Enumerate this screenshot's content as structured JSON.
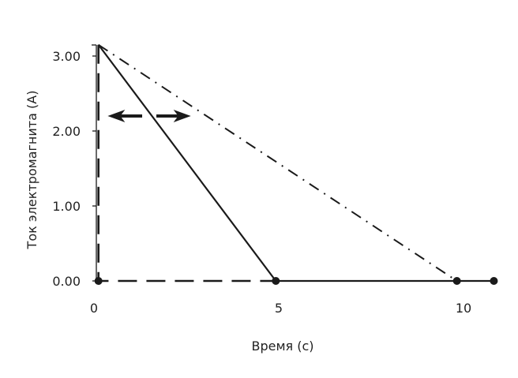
{
  "chart_data": {
    "type": "line",
    "title": "",
    "xlabel": "Время (с)",
    "ylabel": "Ток электромагнита (А)",
    "xlim": [
      0,
      11
    ],
    "ylim": [
      0,
      3.15
    ],
    "x_ticks": [
      {
        "value": 0,
        "label": "0"
      },
      {
        "value": 5,
        "label": "5"
      },
      {
        "value": 10,
        "label": "10"
      }
    ],
    "y_ticks": [
      {
        "value": 0,
        "label": "0.00"
      },
      {
        "value": 1,
        "label": "1.00"
      },
      {
        "value": 2,
        "label": "2.00"
      },
      {
        "value": 3,
        "label": "3.00"
      }
    ],
    "grid": false,
    "color": "#1a1a1a",
    "series": [
      {
        "style": "dashed",
        "points": [
          [
            0.1,
            3.15
          ],
          [
            0.1,
            0
          ],
          [
            5,
            0
          ]
        ]
      },
      {
        "style": "solid",
        "points": [
          [
            0.1,
            3.15
          ],
          [
            4.9,
            0
          ],
          [
            10.8,
            0
          ]
        ]
      },
      {
        "style": "dash-dot",
        "points": [
          [
            0.1,
            3.15
          ],
          [
            9.8,
            0
          ]
        ]
      }
    ],
    "markers": [
      [
        0.1,
        0
      ],
      [
        4.9,
        0
      ],
      [
        9.8,
        0
      ],
      [
        10.8,
        0
      ]
    ],
    "annotations": [
      {
        "type": "double-arrow",
        "from": [
          0.35,
          2.2
        ],
        "to": [
          2.6,
          2.2
        ]
      }
    ]
  }
}
